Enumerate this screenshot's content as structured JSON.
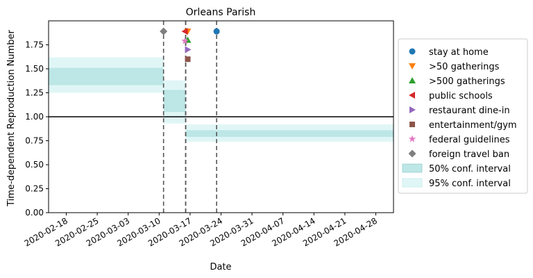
{
  "chart_data": {
    "type": "area",
    "title": "Orleans Parish",
    "xlabel": "Date",
    "ylabel": "Time-dependent Reproduction Number",
    "xlim": [
      "2020-02-14",
      "2020-05-02"
    ],
    "ylim": [
      0,
      2.0
    ],
    "x_ticks": [
      "2020-02-18",
      "2020-02-25",
      "2020-03-03",
      "2020-03-10",
      "2020-03-17",
      "2020-03-24",
      "2020-03-31",
      "2020-04-07",
      "2020-04-14",
      "2020-04-21",
      "2020-04-28"
    ],
    "y_ticks": [
      0.0,
      0.25,
      0.5,
      0.75,
      1.0,
      1.25,
      1.5,
      1.75
    ],
    "y_tick_labels": [
      "0.00",
      "0.25",
      "0.50",
      "0.75",
      "1.00",
      "1.25",
      "1.50",
      "1.75"
    ],
    "reference_line": 1.0,
    "segments": [
      {
        "start": "2020-02-14",
        "end": "2020-03-11",
        "ci50": [
          1.33,
          1.51
        ],
        "ci95": [
          1.25,
          1.62
        ]
      },
      {
        "start": "2020-03-11",
        "end": "2020-03-16",
        "ci50": [
          1.05,
          1.28
        ],
        "ci95": [
          0.93,
          1.38
        ]
      },
      {
        "start": "2020-03-16",
        "end": "2020-05-02",
        "ci50": [
          0.79,
          0.86
        ],
        "ci95": [
          0.74,
          0.92
        ]
      }
    ],
    "interventions": [
      {
        "name": "stay at home",
        "date": "2020-03-23",
        "y": 1.89,
        "marker": "circle",
        "color": "#1f77b4"
      },
      {
        "name": ">50 gatherings",
        "date": "2020-03-16",
        "y": 1.89,
        "marker": "triangle-down",
        "color": "#ff7f0e"
      },
      {
        "name": ">500 gatherings",
        "date": "2020-03-16",
        "y": 1.8,
        "marker": "triangle-up",
        "color": "#2ca02c"
      },
      {
        "name": "public schools",
        "date": "2020-03-16",
        "y": 1.89,
        "marker": "triangle-left",
        "color": "#d62728"
      },
      {
        "name": "restaurant dine-in",
        "date": "2020-03-16",
        "y": 1.7,
        "marker": "triangle-right",
        "color": "#9467bd"
      },
      {
        "name": "entertainment/gym",
        "date": "2020-03-16",
        "y": 1.6,
        "marker": "square",
        "color": "#8c564b"
      },
      {
        "name": "federal guidelines",
        "date": "2020-03-16",
        "y": 1.79,
        "marker": "star",
        "color": "#e377c2"
      },
      {
        "name": "foreign travel ban",
        "date": "2020-03-11",
        "y": 1.89,
        "marker": "diamond",
        "color": "#7f7f7f"
      }
    ],
    "vertical_lines": [
      "2020-03-11",
      "2020-03-16",
      "2020-03-16",
      "2020-03-23"
    ],
    "legend": {
      "placement": "right",
      "ci50_label": "50% conf. interval",
      "ci95_label": "95% conf. interval"
    },
    "colors": {
      "ci50": "#bde6e6",
      "ci95": "#e0f6f6",
      "reference": "#000000",
      "vline": "#555555"
    },
    "grid": false
  }
}
